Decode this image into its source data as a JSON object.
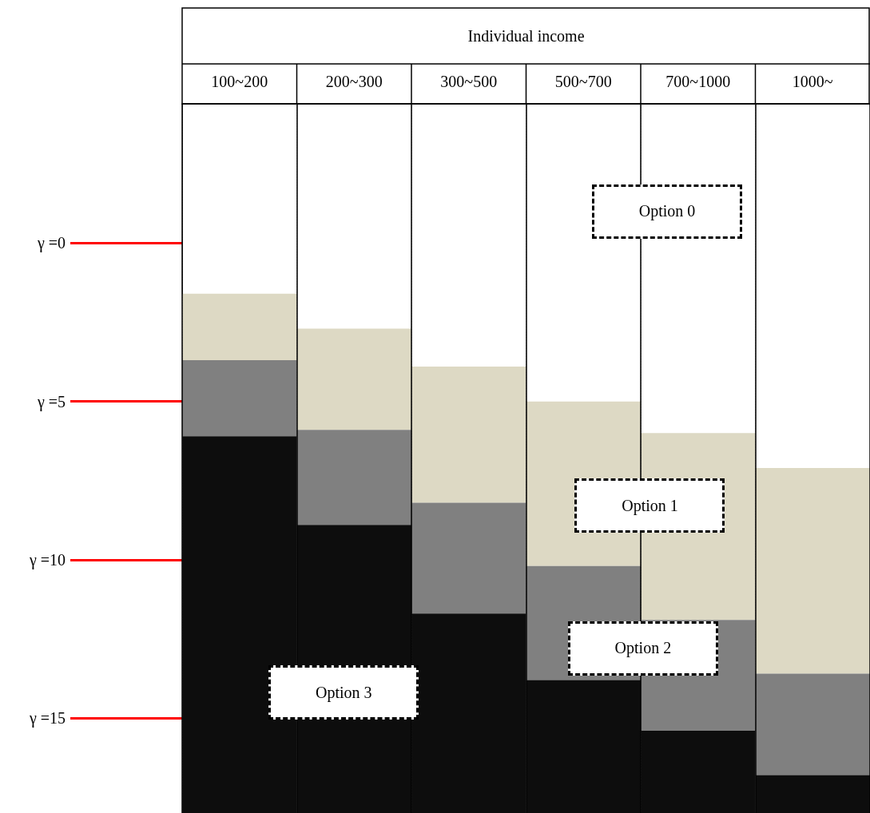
{
  "chart_data": {
    "type": "bar",
    "xlabel": "Individual income",
    "categories": [
      "100~200",
      "200~300",
      "300~500",
      "500~700",
      "700~1000",
      "1000~"
    ],
    "series": [
      {
        "name": "Option 1",
        "color": "#ddd9c4",
        "base": [
          1.6,
          2.7,
          3.9,
          5.0,
          6.0,
          7.1
        ],
        "values": [
          2.1,
          3.2,
          4.3,
          5.2,
          5.9,
          6.5
        ]
      },
      {
        "name": "Option 2",
        "color": "#808080",
        "base": [
          3.7,
          5.9,
          8.2,
          10.2,
          11.9,
          13.6
        ],
        "values": [
          2.4,
          3.0,
          3.5,
          3.6,
          3.5,
          3.2
        ]
      },
      {
        "name": "Option 3",
        "color": "#0d0d0d",
        "base": [
          6.1,
          8.9,
          11.7,
          13.8,
          15.4,
          16.8
        ],
        "values": [
          11.9,
          9.1,
          6.3,
          4.2,
          2.6,
          1.2
        ]
      }
    ],
    "annotations": [
      "Option 0"
    ],
    "ylim": [
      18,
      -4.4
    ],
    "yticks": [
      {
        "value": 0,
        "label": "γ =0"
      },
      {
        "value": 5,
        "label": "γ =5"
      },
      {
        "value": 10,
        "label": "γ =10"
      },
      {
        "value": 15,
        "label": "γ =15"
      }
    ],
    "grid": "x",
    "legend": false
  }
}
